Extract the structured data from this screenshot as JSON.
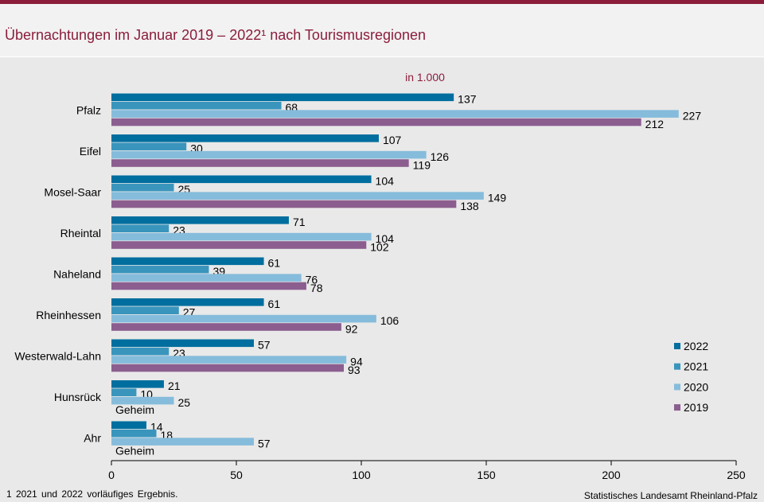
{
  "header": {
    "title": "Übernachtungen im Januar 2019 – 2022¹ nach Tourismusregionen"
  },
  "footer": {
    "footnote": "1 2021 und 2022 vorläufiges Ergebnis.",
    "source": "Statistisches Landesamt Rheinland-Pfalz"
  },
  "chart_data": {
    "type": "bar",
    "orientation": "horizontal",
    "unit_label": "in 1.000",
    "categories": [
      "Pfalz",
      "Eifel",
      "Mosel-Saar",
      "Rheintal",
      "Naheland",
      "Rheinhessen",
      "Westerwald-Lahn",
      "Hunsrück",
      "Ahr"
    ],
    "series": [
      {
        "name": "2022",
        "color": "#006e9e",
        "values": [
          137,
          107,
          104,
          71,
          61,
          61,
          57,
          21,
          14
        ]
      },
      {
        "name": "2021",
        "color": "#3a95bd",
        "values": [
          68,
          30,
          25,
          23,
          39,
          27,
          23,
          10,
          18
        ]
      },
      {
        "name": "2020",
        "color": "#86bcdb",
        "values": [
          227,
          126,
          149,
          104,
          76,
          106,
          94,
          25,
          57
        ]
      },
      {
        "name": "2019",
        "color": "#8b5e8f",
        "values": [
          212,
          119,
          138,
          102,
          78,
          92,
          93,
          null,
          null
        ]
      }
    ],
    "missing_label": "Geheim",
    "xlim": [
      0,
      250
    ],
    "x_ticks": [
      "0",
      "50",
      "100",
      "150",
      "200",
      "250"
    ],
    "grid": false,
    "legend_position": "right"
  }
}
